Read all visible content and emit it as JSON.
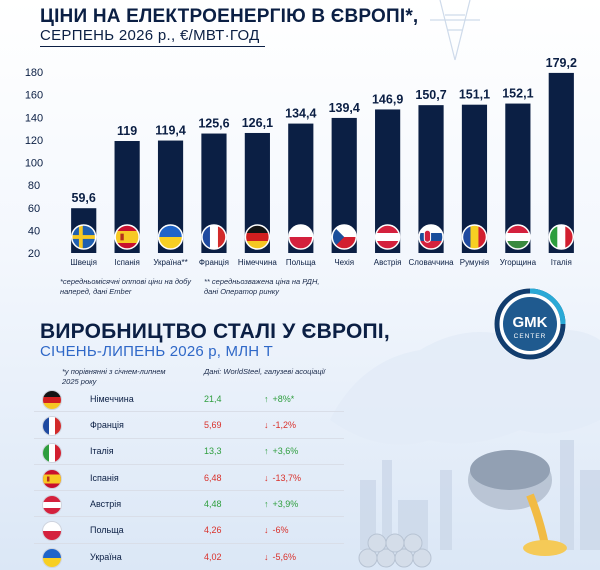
{
  "header": {
    "title": "ЦІНИ НА ЕЛЕКТРОЕНЕРГІЮ В ЄВРОПІ*,",
    "subtitle": "СЕРПЕНЬ 2026 р., €/МВТ·ГОД"
  },
  "chart_data": {
    "type": "bar",
    "title": "ЦІНИ НА ЕЛЕКТРОЕНЕРГІЮ В ЄВРОПІ*,",
    "subtitle": "СЕРПЕНЬ 2026 р., €/МВТ·ГОД",
    "categories": [
      "Швеція",
      "Іспанія",
      "Україна**",
      "Франція",
      "Німеччина",
      "Польща",
      "Чехія",
      "Австрія",
      "Словаччина",
      "Румунія",
      "Угорщина",
      "Італія"
    ],
    "values": [
      59.6,
      119,
      119.4,
      125.6,
      126.1,
      134.4,
      139.4,
      146.9,
      150.7,
      151.1,
      152.1,
      179.2
    ],
    "value_labels": [
      "59,6",
      "119",
      "119,4",
      "125,6",
      "126,1",
      "134,4",
      "139,4",
      "146,9",
      "150,7",
      "151,1",
      "152,1",
      "179,2"
    ],
    "flags": [
      "se",
      "es",
      "ua",
      "fr",
      "de",
      "pl",
      "cz",
      "at",
      "sk",
      "ro",
      "hu",
      "it"
    ],
    "yticks": [
      "20",
      "40",
      "60",
      "80",
      "100",
      "120",
      "140",
      "160",
      "180"
    ],
    "ylim": [
      20,
      180
    ],
    "grid": false,
    "bar_color": "#0b1f44"
  },
  "footnotes": {
    "note1": "*середньомісячні оптові ціни на добу наперед, дані Ember",
    "note2": "** середньозважена ціна на РДН, дані Оператор ринку"
  },
  "steel": {
    "title": "ВИРОБНИЦТВО СТАЛІ У ЄВРОПІ,",
    "subtitle": "СІЧЕНЬ-ЛИПЕНЬ 2026 р, МЛН Т",
    "note_left": "*у порівнянні з січнем-липнем 2025 року",
    "note_right": "Дані: WorldSteel, галузеві асоціації",
    "rows": [
      {
        "flag": "de",
        "country": "Німеччина",
        "value": "21,4",
        "arrow": "↑",
        "change": "+8%*",
        "up": true
      },
      {
        "flag": "fr",
        "country": "Франція",
        "value": "5,69",
        "arrow": "↓",
        "change": "-1,2%",
        "up": false
      },
      {
        "flag": "it",
        "country": "Італія",
        "value": "13,3",
        "arrow": "↑",
        "change": "+3,6%",
        "up": true
      },
      {
        "flag": "es",
        "country": "Іспанія",
        "value": "6,48",
        "arrow": "↓",
        "change": "-13,7%",
        "up": false
      },
      {
        "flag": "at",
        "country": "Австрія",
        "value": "4,48",
        "arrow": "↑",
        "change": "+3,9%",
        "up": true
      },
      {
        "flag": "pl",
        "country": "Польща",
        "value": "4,26",
        "arrow": "↓",
        "change": "-6%",
        "up": false
      },
      {
        "flag": "ua",
        "country": "Україна",
        "value": "4,02",
        "arrow": "↓",
        "change": "-5,6%",
        "up": false
      }
    ],
    "colors": {
      "up": "#2e9e3e",
      "down": "#d9312b"
    }
  },
  "logo": {
    "line1": "GMK",
    "line2": "CENTER"
  }
}
